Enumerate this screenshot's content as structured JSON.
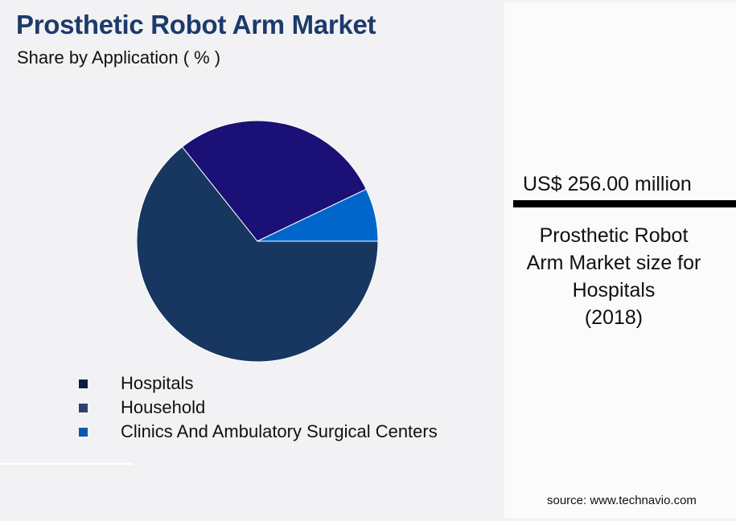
{
  "header": {
    "title": "Prosthetic Robot Arm Market",
    "subtitle": "Share by Application ( % )"
  },
  "chart_data": {
    "type": "pie",
    "title": "Prosthetic Robot Arm Market",
    "subtitle": "Share by Application ( % )",
    "categories": [
      "Hospitals",
      "Household",
      "Clinics And Ambulatory Surgical Centers"
    ],
    "values": [
      64.3,
      28.6,
      7.1
    ],
    "colors": [
      "#173660",
      "#1a1075",
      "#0066cc"
    ],
    "legend_colors": [
      "#0f1d40",
      "#2f3f6f",
      "#0b5aa8"
    ],
    "start_angle_deg": 0,
    "direction": "clockwise",
    "legend_position": "bottom"
  },
  "legend": {
    "items": [
      {
        "label": "Hospitals",
        "color": "#0f1d40"
      },
      {
        "label": "Household",
        "color": "#2f3f6f"
      },
      {
        "label": "Clinics And Ambulatory Surgical Centers",
        "color": "#0b5aa8"
      }
    ]
  },
  "highlight": {
    "value": "US$ 256.00 million",
    "caption_lines": [
      "Prosthetic Robot",
      "Arm Market size for",
      "Hospitals",
      "(2018)"
    ]
  },
  "footer": {
    "source": "source: www.technavio.com"
  }
}
